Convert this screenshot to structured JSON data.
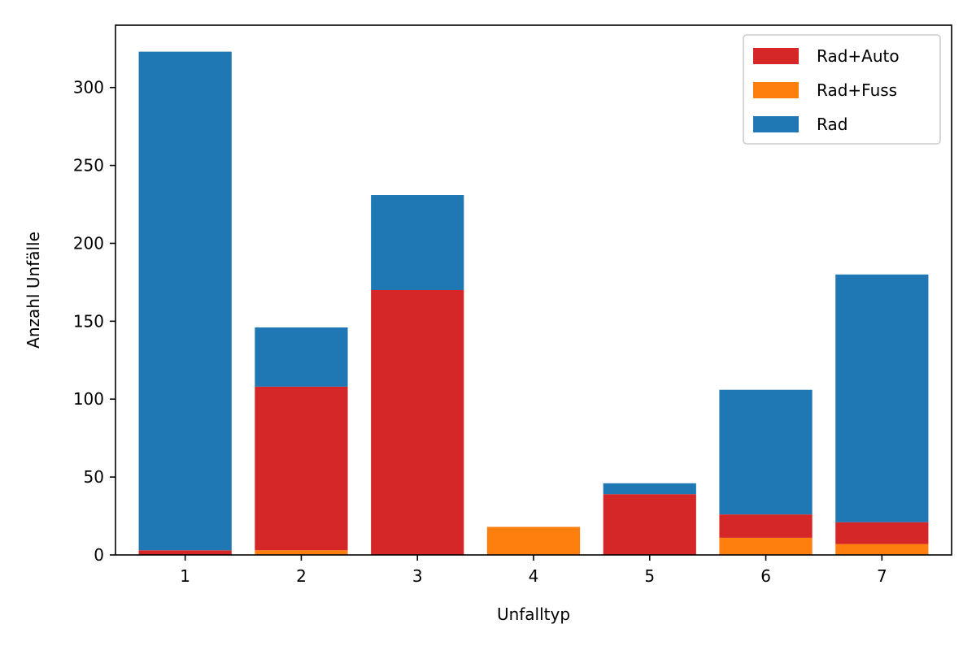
{
  "chart_data": {
    "type": "bar",
    "stacked": true,
    "categories": [
      "1",
      "2",
      "3",
      "4",
      "5",
      "6",
      "7"
    ],
    "series": [
      {
        "name": "Rad+Fuss",
        "color": "#ff7f0e",
        "values": [
          0,
          3,
          0,
          18,
          0,
          11,
          7
        ]
      },
      {
        "name": "Rad+Auto",
        "color": "#d62728",
        "values": [
          3,
          105,
          170,
          0,
          39,
          15,
          14
        ]
      },
      {
        "name": "Rad",
        "color": "#1f77b4",
        "values": [
          320,
          38,
          61,
          0,
          7,
          80,
          159
        ]
      }
    ],
    "legend_order": [
      "Rad+Auto",
      "Rad+Fuss",
      "Rad"
    ],
    "legend_position": "top-right",
    "xlabel": "Unfalltyp",
    "ylabel": "Anzahl Unfälle",
    "ylim": [
      0,
      340
    ],
    "yticks": [
      0,
      50,
      100,
      150,
      200,
      250,
      300
    ],
    "grid": false
  }
}
